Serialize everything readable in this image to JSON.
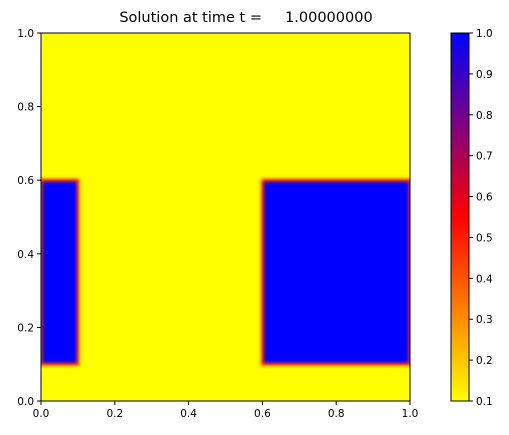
{
  "chart_data": {
    "type": "heatmap",
    "title": "Solution at time t =     1.00000000",
    "xlabel": "",
    "ylabel": "",
    "xlim": [
      0.0,
      1.0
    ],
    "ylim": [
      0.0,
      1.0
    ],
    "x_ticks": [
      0.0,
      0.2,
      0.4,
      0.6,
      0.8,
      1.0
    ],
    "x_tick_labels": [
      "0.0",
      "0.2",
      "0.4",
      "0.6",
      "0.8",
      "1.0"
    ],
    "y_ticks": [
      0.0,
      0.2,
      0.4,
      0.6,
      0.8,
      1.0
    ],
    "y_tick_labels": [
      "0.0",
      "0.2",
      "0.4",
      "0.6",
      "0.8",
      "1.0"
    ],
    "grid": false,
    "background_value": 0.1,
    "regions": [
      {
        "x_range": [
          0.0,
          0.1
        ],
        "y_range": [
          0.1,
          0.6
        ],
        "value": 1.0
      },
      {
        "x_range": [
          0.6,
          1.0
        ],
        "y_range": [
          0.1,
          0.6
        ],
        "value": 1.0
      }
    ],
    "colorbar": {
      "range": [
        0.1,
        1.0
      ],
      "ticks": [
        0.1,
        0.2,
        0.3,
        0.4,
        0.5,
        0.6,
        0.7,
        0.8,
        0.9,
        1.0
      ],
      "tick_labels": [
        "0.1",
        "0.2",
        "0.3",
        "0.4",
        "0.5",
        "0.6",
        "0.7",
        "0.8",
        "0.9",
        "1.0"
      ],
      "colormap": [
        "#ffff00",
        "#ff0000",
        "#0000ff"
      ]
    }
  }
}
